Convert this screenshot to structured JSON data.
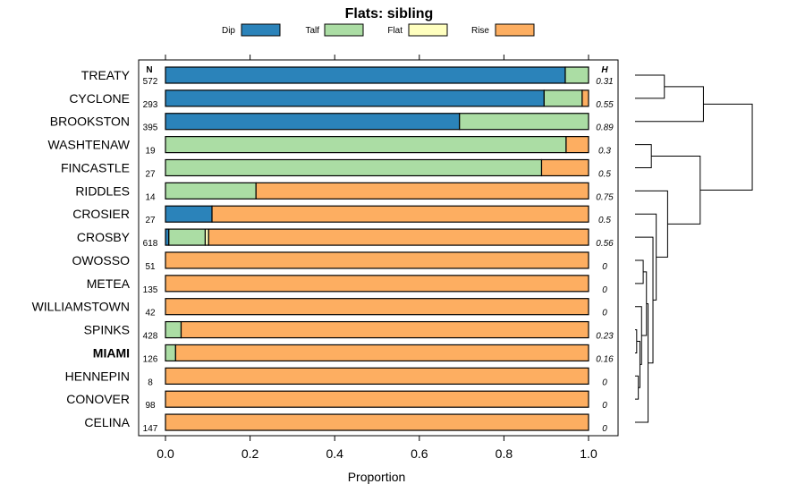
{
  "chart_data": {
    "type": "bar",
    "orientation": "horizontal",
    "stacked": true,
    "title": "Flats: sibling",
    "xlabel": "Proportion",
    "xlim": [
      0,
      1
    ],
    "xticks": [
      "0.0",
      "0.2",
      "0.4",
      "0.6",
      "0.8",
      "1.0"
    ],
    "n_header": "N",
    "h_header": "H",
    "categories": [
      "TREATY",
      "CYCLONE",
      "BROOKSTON",
      "WASHTENAW",
      "FINCASTLE",
      "RIDDLES",
      "CROSIER",
      "CROSBY",
      "OWOSSO",
      "METEA",
      "WILLIAMSTOWN",
      "SPINKS",
      "MIAMI",
      "HENNEPIN",
      "CONOVER",
      "CELINA"
    ],
    "highlighted": [
      "MIAMI"
    ],
    "n": [
      "572",
      "293",
      "395",
      "19",
      "27",
      "14",
      "27",
      "618",
      "51",
      "135",
      "42",
      "428",
      "126",
      "8",
      "98",
      "147"
    ],
    "h": [
      "0.31",
      "0.55",
      "0.89",
      "0.3",
      "0.5",
      "0.75",
      "0.5",
      "0.56",
      "0",
      "0",
      "0",
      "0.23",
      "0.16",
      "0",
      "0",
      "0"
    ],
    "series": [
      {
        "name": "Dip",
        "color": "#2b83ba",
        "values": [
          0.945,
          0.895,
          0.695,
          0,
          0,
          0,
          0.11,
          0.008,
          0,
          0,
          0,
          0,
          0,
          0,
          0,
          0
        ]
      },
      {
        "name": "Talf",
        "color": "#abdda4",
        "values": [
          0.055,
          0.09,
          0.305,
          0.947,
          0.889,
          0.214,
          0,
          0.086,
          0,
          0,
          0,
          0.037,
          0.024,
          0,
          0,
          0
        ]
      },
      {
        "name": "Flat",
        "color": "#ffffbf",
        "values": [
          0,
          0,
          0,
          0,
          0,
          0,
          0,
          0.008,
          0,
          0,
          0,
          0,
          0,
          0,
          0,
          0
        ]
      },
      {
        "name": "Rise",
        "color": "#fdae61",
        "values": [
          0,
          0.015,
          0,
          0.053,
          0.111,
          0.786,
          0.89,
          0.898,
          1,
          1,
          1,
          0.963,
          0.976,
          1,
          1,
          1
        ]
      }
    ],
    "dendrogram": {
      "merges": [
        [
          0,
          1,
          0.18
        ],
        [
          3,
          4,
          0.1
        ],
        [
          11,
          12,
          0.01
        ],
        [
          13,
          14,
          0.02
        ],
        [
          8,
          9,
          0.05
        ],
        [
          -3,
          -4,
          0.03
        ],
        [
          10,
          -6,
          0.04
        ],
        [
          -5,
          -7,
          0.07
        ],
        [
          -8,
          15,
          0.08
        ],
        [
          7,
          -9,
          0.11
        ],
        [
          6,
          -10,
          0.13
        ],
        [
          5,
          -11,
          0.2
        ],
        [
          -1,
          2,
          0.42
        ],
        [
          -2,
          -12,
          0.4
        ],
        [
          -13,
          -14,
          0.72
        ]
      ]
    }
  }
}
